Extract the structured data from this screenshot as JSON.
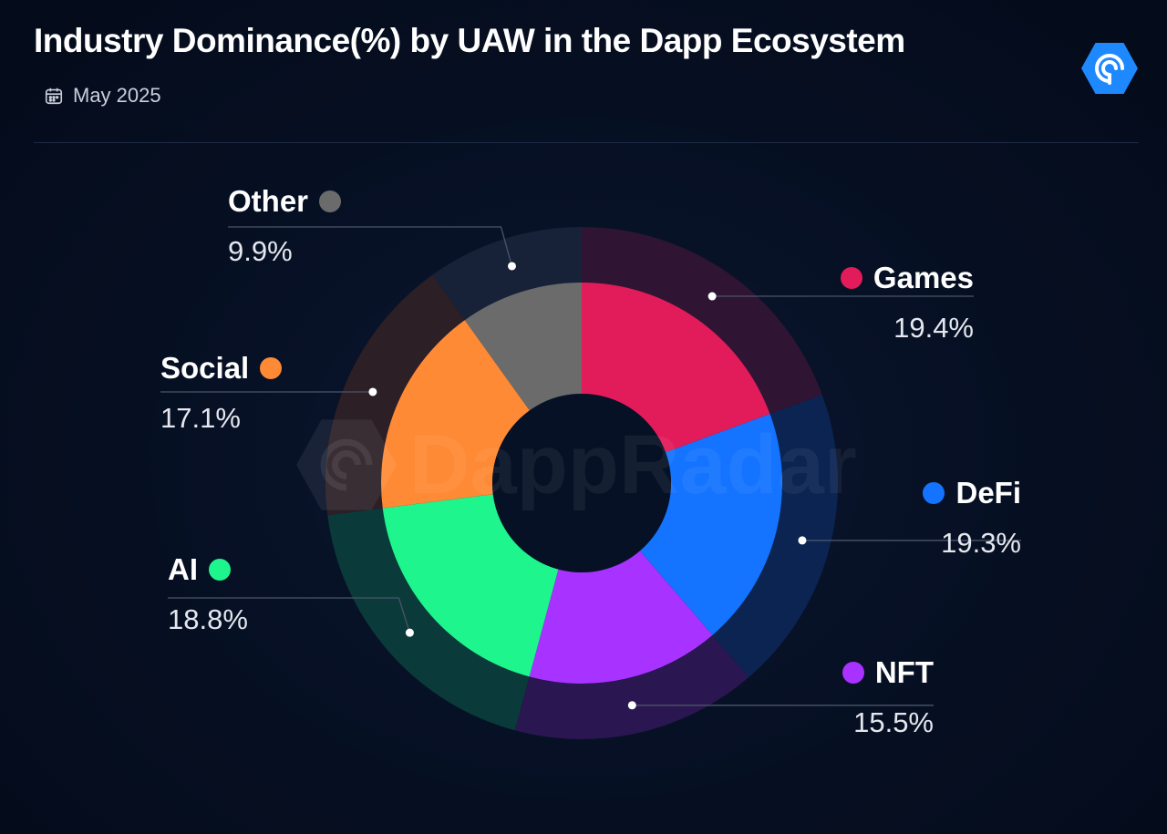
{
  "header": {
    "title": "Industry Dominance(%) by UAW in the Dapp Ecosystem",
    "date": "May 2025"
  },
  "icons": {
    "calendar": "calendar-icon",
    "logo": "dappradar-logo-icon"
  },
  "watermark": {
    "text": "DappRadar"
  },
  "colors": {
    "background": "#050d1f",
    "accent": "#1e88ff"
  },
  "chart_data": {
    "type": "pie",
    "style": "donut",
    "categories": [
      "Games",
      "DeFi",
      "NFT",
      "AI",
      "Social",
      "Other"
    ],
    "values": [
      19.4,
      19.3,
      15.5,
      18.8,
      17.1,
      9.9
    ],
    "value_labels": [
      "19.4%",
      "19.3%",
      "15.5%",
      "18.8%",
      "17.1%",
      "9.9%"
    ],
    "colors": [
      "#e21b5a",
      "#1473ff",
      "#a832ff",
      "#1ef58c",
      "#ff8a35",
      "#6b6b6b"
    ],
    "outer_ring_colors": [
      "#2f1433",
      "#0c2452",
      "#2a1650",
      "#0b3a3a",
      "#2c1f26",
      "#172238"
    ],
    "start_angle_deg": 0,
    "direction": "clockwise"
  }
}
